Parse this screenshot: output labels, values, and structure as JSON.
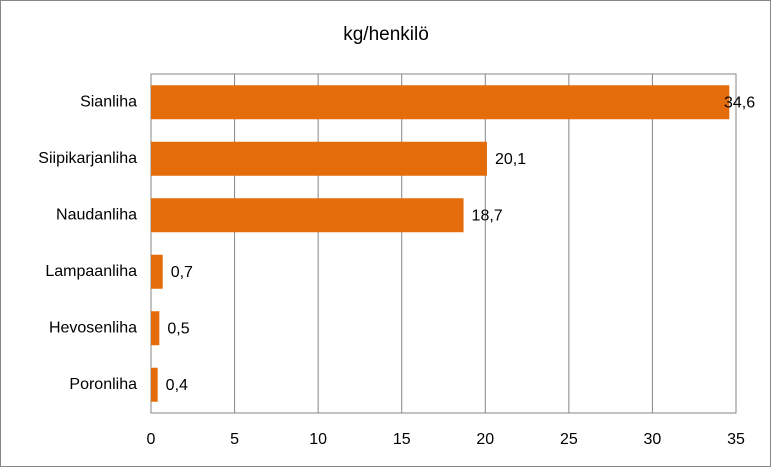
{
  "chart_data": {
    "type": "bar",
    "orientation": "horizontal",
    "title": "kg/henkilö",
    "categories": [
      "Sianliha",
      "Siipikarjanliha",
      "Naudanliha",
      "Lampaanliha",
      "Hevosenliha",
      "Poronliha"
    ],
    "values": [
      34.6,
      20.1,
      18.7,
      0.7,
      0.5,
      0.4
    ],
    "value_labels": [
      "34,6",
      "20,1",
      "18,7",
      "0,7",
      "0,5",
      "0,4"
    ],
    "color": "#e46c0a",
    "xlim": [
      0,
      35
    ],
    "xticks": [
      0,
      5,
      10,
      15,
      20,
      25,
      30,
      35
    ],
    "grid": true
  }
}
